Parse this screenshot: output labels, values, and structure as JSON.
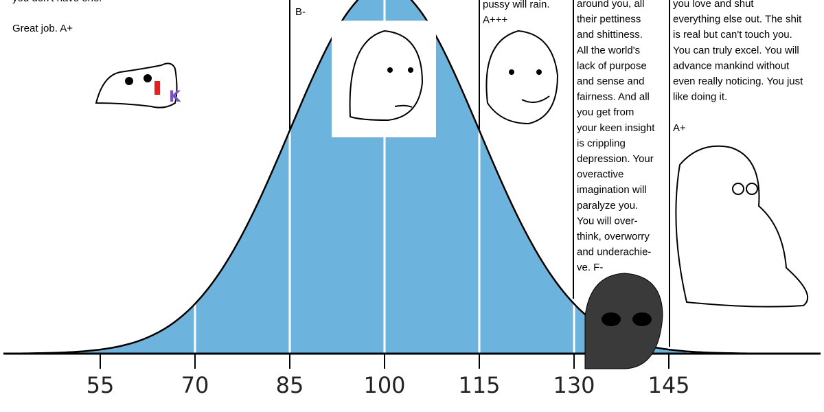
{
  "axis": {
    "ticks": [
      55,
      70,
      85,
      100,
      115,
      130,
      145
    ]
  },
  "panels": [
    {
      "lines": [
        "you don't have one.",
        "Great job. A+"
      ]
    },
    {
      "lines": [
        "B-"
      ]
    },
    {
      "lines": [
        "pussy will rain.",
        "A+++"
      ]
    },
    {
      "lines": [
        "around you, all",
        "their pettiness",
        "and shittiness.",
        "All the world's",
        "lack of purpose",
        "and sense and",
        "fairness. And all",
        "you get from",
        "your keen insight",
        "is crippling",
        "depression. Your",
        "overactive",
        "imagination will",
        "paralyze you.",
        "You will over-",
        "think, overworry",
        "and underachie-",
        "ve.  F-"
      ]
    },
    {
      "lines": [
        "you love and shut",
        "everything else out. The shit",
        "is real but can't touch you.",
        "You can truly excel. You will",
        "advance mankind without",
        "even really noticing. You just",
        "like doing it."
      ]
    },
    {
      "lines": [
        "A+"
      ]
    }
  ]
}
